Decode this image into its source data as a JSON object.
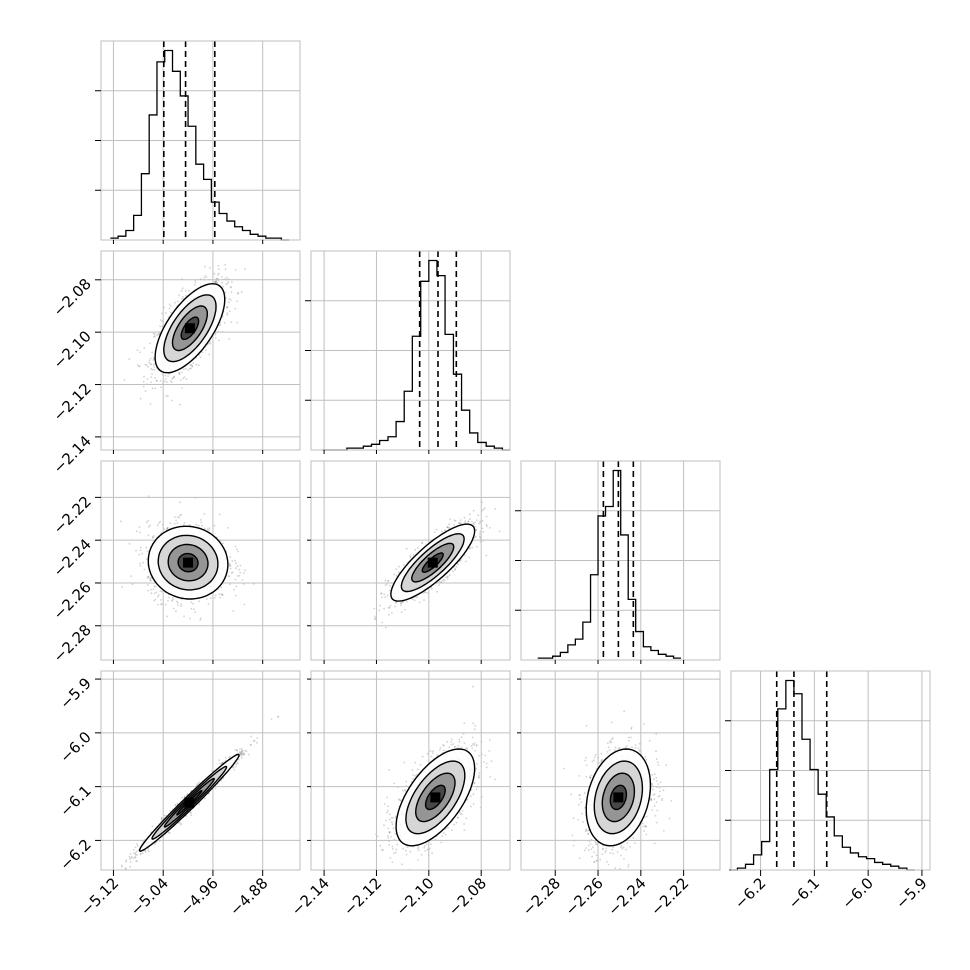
{
  "chart_data": {
    "type": "scatter",
    "subtype": "corner-plot",
    "title": "",
    "grid": true,
    "style": {
      "frame_color": "#bfbfbf",
      "grid_color": "#bfbfbf",
      "line_color": "#000000",
      "point_color": "#7f7f7f",
      "density_dark": "#000000",
      "density_light": "#e0e0e0",
      "tick_color": "#000000"
    },
    "parameters": [
      {
        "name": "",
        "range": [
          -5.14,
          -4.82
        ],
        "ticks": [
          -5.12,
          -5.04,
          -4.96,
          -4.88
        ],
        "tick_labels": [
          "−5.12",
          "−5.04",
          "−4.96",
          "−4.88"
        ],
        "quantiles": [
          -5.039,
          -5.004,
          -4.957
        ],
        "histogram": {
          "edges": [
            -5.125,
            -5.1125,
            -5.1,
            -5.0875,
            -5.075,
            -5.0625,
            -5.05,
            -5.0375,
            -5.025,
            -5.0125,
            -5.0,
            -4.9875,
            -4.975,
            -4.9625,
            -4.95,
            -4.9375,
            -4.925,
            -4.9125,
            -4.9,
            -4.8875,
            -4.875,
            -4.8625,
            -4.85,
            -4.8375
          ],
          "counts": [
            1,
            2,
            5,
            13,
            35,
            66,
            94,
            100,
            89,
            76,
            60,
            40,
            32,
            20,
            14,
            10,
            7,
            5,
            3,
            2,
            1,
            1,
            0
          ]
        }
      },
      {
        "name": "",
        "range": [
          -2.145,
          -2.069
        ],
        "ticks": [
          -2.14,
          -2.12,
          -2.1,
          -2.08
        ],
        "tick_labels": [
          "−2.14",
          "−2.12",
          "−2.10",
          "−2.08"
        ],
        "quantiles": [
          -2.1035,
          -2.0965,
          -2.0895
        ],
        "histogram": {
          "edges": [
            -2.1406,
            -2.1375,
            -2.1344,
            -2.1313,
            -2.1281,
            -2.125,
            -2.1219,
            -2.1188,
            -2.1156,
            -2.1125,
            -2.1094,
            -2.1063,
            -2.1031,
            -2.1,
            -2.0969,
            -2.0938,
            -2.0906,
            -2.0875,
            -2.0844,
            -2.0813,
            -2.0781,
            -2.075,
            -2.0719,
            -2.0688
          ],
          "counts": [
            0,
            0,
            0,
            1,
            1,
            2,
            3,
            5,
            7,
            15,
            31,
            60,
            89,
            100,
            92,
            61,
            40,
            21,
            9,
            4,
            2,
            1,
            0
          ]
        }
      },
      {
        "name": "",
        "range": [
          -2.296,
          -2.203
        ],
        "ticks": [
          -2.28,
          -2.26,
          -2.24,
          -2.22
        ],
        "tick_labels": [
          "−2.28",
          "−2.26",
          "−2.24",
          "−2.22"
        ],
        "quantiles": [
          -2.2575,
          -2.2505,
          -2.2435
        ],
        "histogram": {
          "edges": [
            -2.2882,
            -2.2847,
            -2.2812,
            -2.2776,
            -2.2741,
            -2.2706,
            -2.2671,
            -2.2635,
            -2.26,
            -2.2565,
            -2.2529,
            -2.2494,
            -2.2459,
            -2.2424,
            -2.2388,
            -2.2353,
            -2.2318,
            -2.2282,
            -2.2247,
            -2.2212
          ],
          "counts": [
            1,
            1,
            2,
            4,
            8,
            11,
            20,
            45,
            76,
            81,
            100,
            66,
            32,
            15,
            7,
            5,
            3,
            2,
            1
          ]
        }
      },
      {
        "name": "",
        "range": [
          -6.255,
          -5.885
        ],
        "ticks": [
          -6.2,
          -6.1,
          -6.0,
          -5.9
        ],
        "tick_labels": [
          "−6.2",
          "−6.1",
          "−6.0",
          "−5.9"
        ],
        "quantiles": [
          -6.17,
          -6.138,
          -6.077
        ],
        "histogram": {
          "edges": [
            -6.258,
            -6.243,
            -6.228,
            -6.213,
            -6.198,
            -6.183,
            -6.168,
            -6.153,
            -6.138,
            -6.123,
            -6.108,
            -6.093,
            -6.078,
            -6.063,
            -6.048,
            -6.033,
            -6.018,
            -6.003,
            -5.988,
            -5.973,
            -5.958,
            -5.943,
            -5.928,
            -5.913
          ],
          "counts": [
            0,
            1,
            3,
            8,
            15,
            53,
            85,
            100,
            93,
            69,
            53,
            40,
            28,
            18,
            12,
            9,
            7,
            6,
            4,
            3,
            2,
            1,
            0
          ]
        }
      }
    ],
    "pairs": [
      {
        "row": 1,
        "col": 0,
        "mean": [
          -4.997,
          -2.0985
        ],
        "sd": [
          0.028,
          0.0085
        ],
        "corr": 0.65,
        "points": 1500
      },
      {
        "row": 2,
        "col": 0,
        "mean": [
          -5.0,
          -2.2505
        ],
        "sd": [
          0.032,
          0.0085
        ],
        "corr": -0.05,
        "points": 1400
      },
      {
        "row": 2,
        "col": 1,
        "mean": [
          -2.0985,
          -2.2505
        ],
        "sd": [
          0.008,
          0.009
        ],
        "corr": 0.82,
        "points": 1200
      },
      {
        "row": 3,
        "col": 0,
        "mean": [
          -4.998,
          -6.13
        ],
        "sd": [
          0.04,
          0.045
        ],
        "corr": 0.985,
        "points": 1500
      },
      {
        "row": 3,
        "col": 1,
        "mean": [
          -2.0975,
          -6.12
        ],
        "sd": [
          0.0075,
          0.045
        ],
        "corr": 0.6,
        "points": 1400
      },
      {
        "row": 3,
        "col": 2,
        "mean": [
          -2.2505,
          -6.12
        ],
        "sd": [
          0.0075,
          0.045
        ],
        "corr": 0.25,
        "points": 1400
      }
    ]
  }
}
